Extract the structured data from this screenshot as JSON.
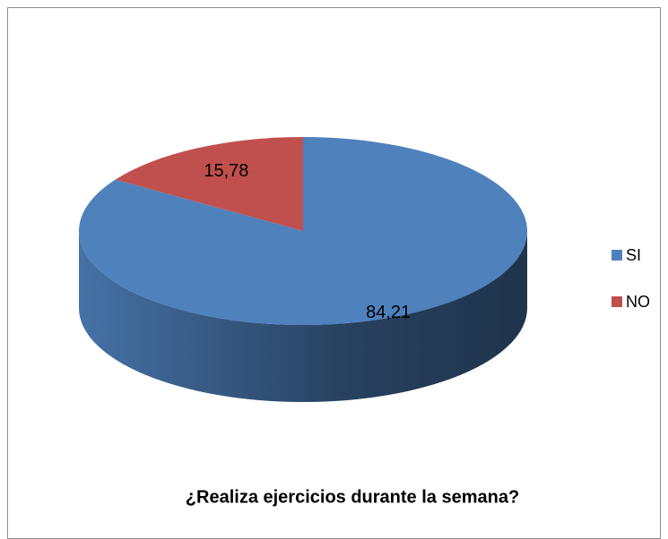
{
  "chart_data": {
    "type": "pie",
    "title": "¿Realiza ejercicios durante la semana?",
    "categories": [
      "SI",
      "NO"
    ],
    "values": [
      84.21,
      15.78
    ],
    "value_labels": [
      "84,21",
      "15,78"
    ],
    "colors": [
      "#4f81bd",
      "#c0504d"
    ],
    "legend": "right"
  }
}
